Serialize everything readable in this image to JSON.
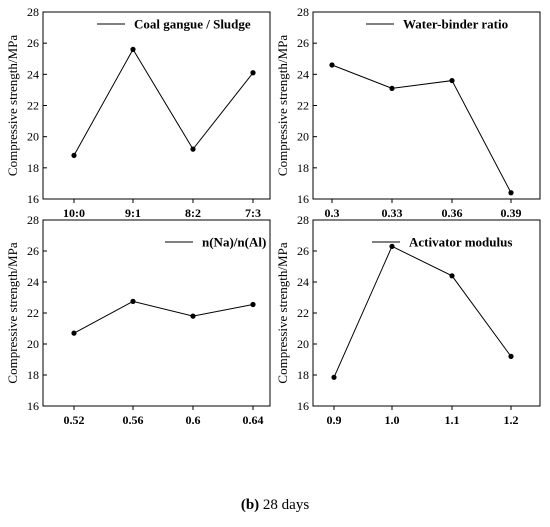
{
  "chart_data": [
    {
      "type": "line",
      "categories": [
        "10:0",
        "9:1",
        "8:2",
        "7:3"
      ],
      "values": [
        18.8,
        25.6,
        19.2,
        24.1
      ],
      "ylabel": "Compressive strength/MPa",
      "ylim": [
        16,
        28
      ],
      "yticks": [
        16,
        18,
        20,
        22,
        24,
        26,
        28
      ],
      "legend": "Coal gangue / Sludge",
      "legend_position": "top-right",
      "grid": false
    },
    {
      "type": "line",
      "categories": [
        "0.3",
        "0.33",
        "0.36",
        "0.39"
      ],
      "values": [
        24.6,
        23.1,
        23.6,
        16.4
      ],
      "ylabel": "Compressive strength/MPa",
      "ylim": [
        16,
        28
      ],
      "yticks": [
        16,
        18,
        20,
        22,
        24,
        26,
        28
      ],
      "legend": "Water-binder ratio",
      "legend_position": "top-right",
      "grid": false
    },
    {
      "type": "line",
      "categories": [
        "0.52",
        "0.56",
        "0.6",
        "0.64"
      ],
      "values": [
        20.7,
        22.75,
        21.8,
        22.55
      ],
      "ylabel": "Compressive strength/MPa",
      "ylim": [
        16,
        28
      ],
      "yticks": [
        16,
        18,
        20,
        22,
        24,
        26,
        28
      ],
      "legend": "n(Na)/n(Al)",
      "legend_position": "top-right",
      "grid": false
    },
    {
      "type": "line",
      "categories": [
        "0.9",
        "1.0",
        "1.1",
        "1.2"
      ],
      "values": [
        17.85,
        26.3,
        24.4,
        19.2
      ],
      "ylabel": "Compressive strength/MPa",
      "ylim": [
        16,
        28
      ],
      "yticks": [
        16,
        18,
        20,
        22,
        24,
        26,
        28
      ],
      "legend": "Activator modulus",
      "legend_position": "top-right",
      "grid": false
    }
  ],
  "caption": {
    "label": "(b)",
    "text": " 28 days"
  }
}
